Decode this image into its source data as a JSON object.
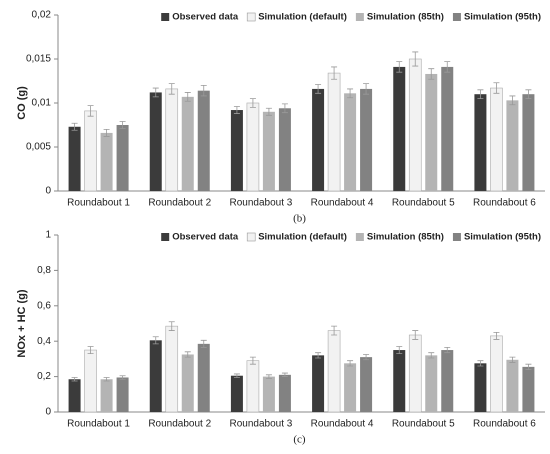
{
  "chart_data": [
    {
      "type": "bar",
      "subtitle": "(b)",
      "y_label": "CO (g)",
      "categories": [
        "Roundabout 1",
        "Roundabout 2",
        "Roundabout 3",
        "Roundabout 4",
        "Roundabout 5",
        "Roundabout 6"
      ],
      "series": [
        {
          "name": "Observed data",
          "color": "#3b3b3b",
          "values": [
            0.0073,
            0.0112,
            0.0092,
            0.0116,
            0.0141,
            0.011
          ],
          "errors": [
            0.0004,
            0.0005,
            0.0004,
            0.0005,
            0.0006,
            0.0005
          ]
        },
        {
          "name": "Simulation (default)",
          "color": "#f2f2f2",
          "values": [
            0.0091,
            0.0116,
            0.01,
            0.0134,
            0.015,
            0.0117
          ],
          "errors": [
            0.0006,
            0.0006,
            0.0005,
            0.0007,
            0.0008,
            0.0006
          ]
        },
        {
          "name": "Simulation (85th)",
          "color": "#b4b4b4",
          "values": [
            0.0066,
            0.0107,
            0.009,
            0.0111,
            0.0133,
            0.0103
          ],
          "errors": [
            0.0004,
            0.0005,
            0.0004,
            0.0005,
            0.0006,
            0.0005
          ]
        },
        {
          "name": "Simulation (95th)",
          "color": "#828282",
          "values": [
            0.0075,
            0.0114,
            0.0094,
            0.0116,
            0.0141,
            0.011
          ],
          "errors": [
            0.0004,
            0.0006,
            0.0005,
            0.0006,
            0.0006,
            0.0005
          ]
        }
      ],
      "ylim": [
        0,
        0.02
      ],
      "yticks": [
        0,
        {
          "value": 0.005,
          "label": "0,005"
        },
        {
          "value": 0.01,
          "label": "0,01"
        },
        {
          "value": 0.015,
          "label": "0,015"
        },
        {
          "value": 0.02,
          "label": "0,02"
        }
      ],
      "legend": "top-right",
      "grid": false
    },
    {
      "type": "bar",
      "subtitle": "(c)",
      "y_label": "NOx + HC (g)",
      "categories": [
        "Roundabout 1",
        "Roundabout 2",
        "Roundabout 3",
        "Roundabout 4",
        "Roundabout 5",
        "Roundabout 6"
      ],
      "series": [
        {
          "name": "Observed data",
          "color": "#3b3b3b",
          "values": [
            0.185,
            0.405,
            0.205,
            0.32,
            0.35,
            0.275
          ],
          "errors": [
            0.01,
            0.02,
            0.01,
            0.015,
            0.02,
            0.015
          ]
        },
        {
          "name": "Simulation (default)",
          "color": "#f2f2f2",
          "values": [
            0.35,
            0.485,
            0.29,
            0.46,
            0.435,
            0.43
          ],
          "errors": [
            0.02,
            0.025,
            0.02,
            0.025,
            0.025,
            0.02
          ]
        },
        {
          "name": "Simulation (85th)",
          "color": "#b4b4b4",
          "values": [
            0.185,
            0.325,
            0.2,
            0.275,
            0.32,
            0.295
          ],
          "errors": [
            0.01,
            0.015,
            0.01,
            0.015,
            0.015,
            0.015
          ]
        },
        {
          "name": "Simulation (95th)",
          "color": "#828282",
          "values": [
            0.195,
            0.385,
            0.21,
            0.31,
            0.35,
            0.255
          ],
          "errors": [
            0.01,
            0.02,
            0.01,
            0.015,
            0.015,
            0.015
          ]
        }
      ],
      "ylim": [
        0,
        1
      ],
      "yticks": [
        0,
        {
          "value": 0.2,
          "label": "0,2"
        },
        {
          "value": 0.4,
          "label": "0,4"
        },
        {
          "value": 0.6,
          "label": "0,6"
        },
        {
          "value": 0.8,
          "label": "0,8"
        },
        1
      ],
      "legend": "top-right",
      "grid": false
    }
  ]
}
